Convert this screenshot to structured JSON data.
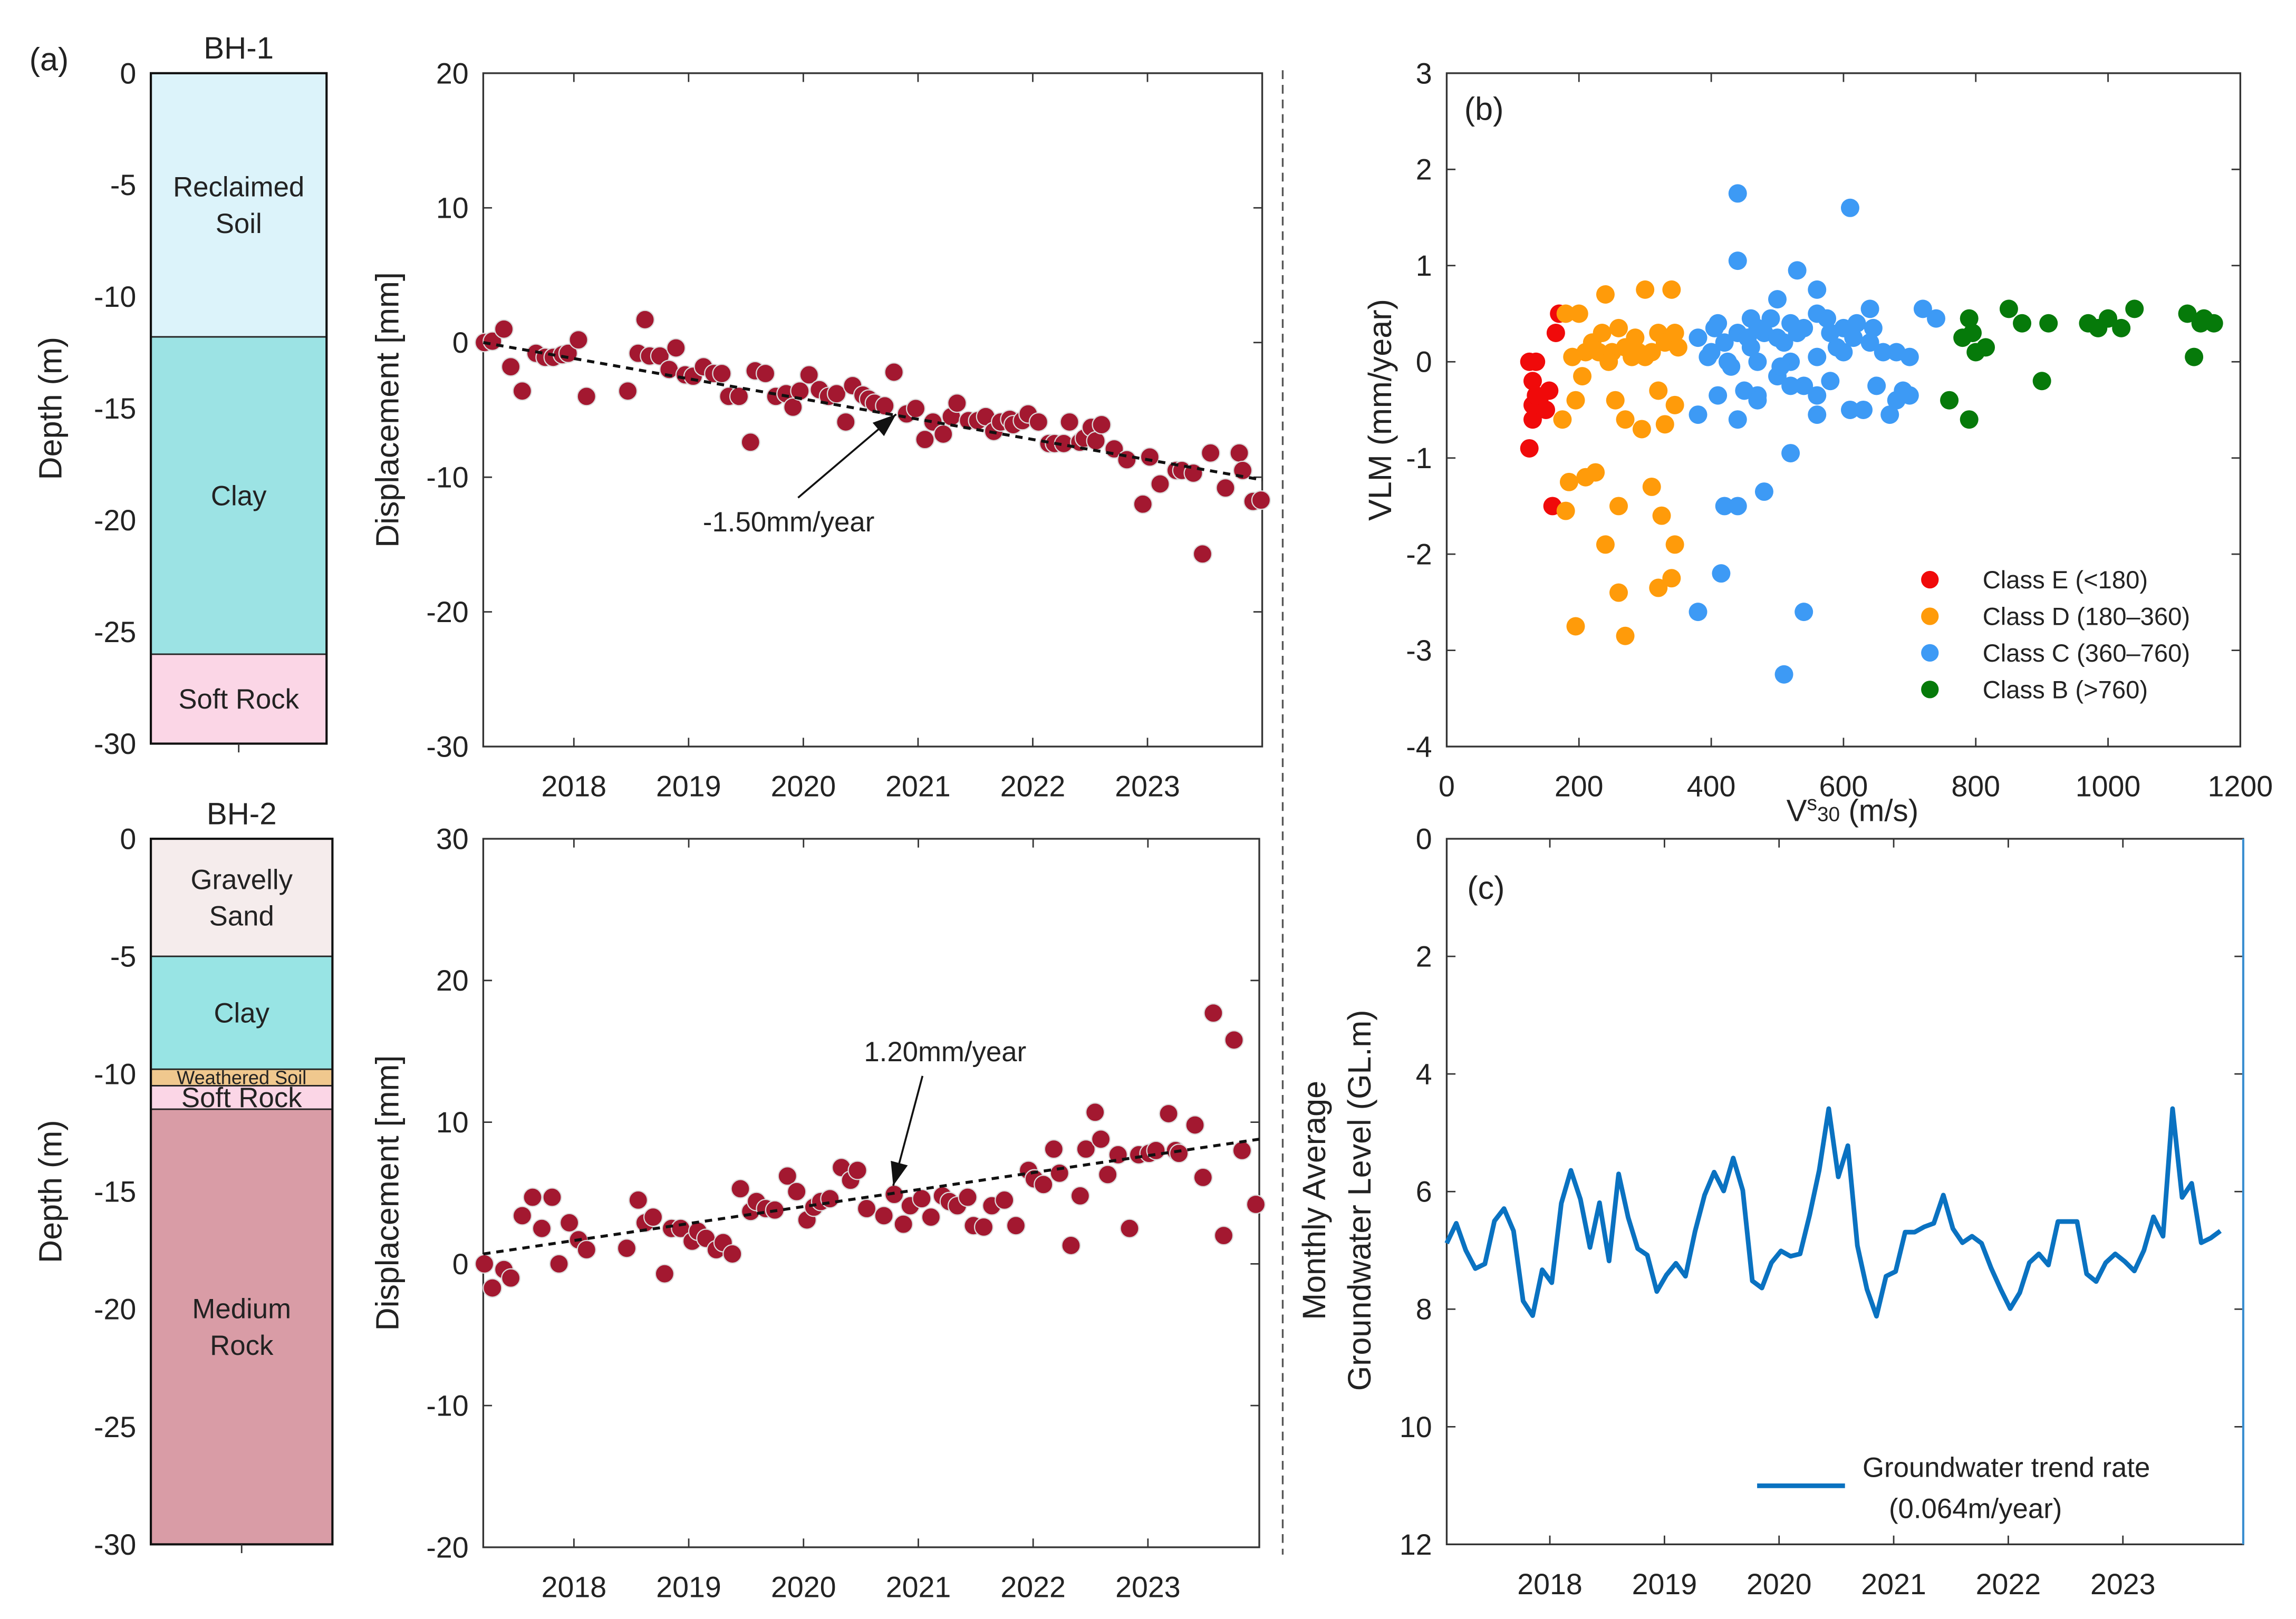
{
  "panel_labels": {
    "a": "(a)",
    "b": "(b)",
    "c": "(c)"
  },
  "chart_data": [
    {
      "id": "bh1",
      "type": "column",
      "title": "BH-1",
      "ylabel": "Depth (m)",
      "ylim": [
        -30,
        0
      ],
      "yticks": [
        0,
        -5,
        -10,
        -15,
        -20,
        -25,
        -30
      ],
      "layers": [
        {
          "label": [
            "Reclaimed",
            "Soil"
          ],
          "top": 0,
          "bottom": -11.8,
          "color": "#dcf3fa"
        },
        {
          "label": [
            "Clay"
          ],
          "top": -11.8,
          "bottom": -26,
          "color": "#9ce3e4"
        },
        {
          "label": [
            "Soft Rock"
          ],
          "top": -26,
          "bottom": -30,
          "color": "#fbd6e6"
        }
      ]
    },
    {
      "id": "bh2",
      "type": "column",
      "title": "BH-2",
      "ylabel": "Depth (m)",
      "ylim": [
        -30,
        0
      ],
      "yticks": [
        0,
        -5,
        -10,
        -15,
        -20,
        -25,
        -30
      ],
      "layers": [
        {
          "label": [
            "Gravelly",
            "Sand"
          ],
          "top": 0,
          "bottom": -5,
          "color": "#f5ecec"
        },
        {
          "label": [
            "Clay"
          ],
          "top": -5,
          "bottom": -9.8,
          "color": "#98e4e4"
        },
        {
          "label": [
            "Weathered Soil"
          ],
          "top": -9.8,
          "bottom": -10.5,
          "color": "#f0c88e"
        },
        {
          "label": [
            "Soft Rock"
          ],
          "top": -10.5,
          "bottom": -11.5,
          "color": "#fbd6e6"
        },
        {
          "label": [
            "Medium",
            "Rock"
          ],
          "top": -11.5,
          "bottom": -30,
          "color": "#d99ca6"
        }
      ]
    },
    {
      "id": "disp1",
      "type": "scatter",
      "ylabel": "Displacement [mm]",
      "xlim": [
        2017.21,
        2024.0
      ],
      "ylim": [
        -30,
        20
      ],
      "xticks": [
        2018,
        2019,
        2020,
        2021,
        2022,
        2023
      ],
      "yticks": [
        20,
        10,
        0,
        -10,
        -20,
        -30
      ],
      "color": "#a31830",
      "trend": {
        "x": [
          2017.21,
          2024.0
        ],
        "y": [
          0,
          -10.2
        ],
        "label": "-1.50mm/year"
      },
      "x": [
        2017.22,
        2017.29,
        2017.39,
        2017.45,
        2017.55,
        2017.67,
        2017.75,
        2017.82,
        2017.9,
        2017.95,
        2018.04,
        2018.11,
        2018.47,
        2018.56,
        2018.62,
        2018.66,
        2018.75,
        2018.83,
        2018.89,
        2018.97,
        2019.04,
        2019.13,
        2019.22,
        2019.29,
        2019.35,
        2019.44,
        2019.54,
        2019.58,
        2019.67,
        2019.76,
        2019.85,
        2019.91,
        2019.97,
        2020.05,
        2020.14,
        2020.22,
        2020.29,
        2020.37,
        2020.43,
        2020.52,
        2020.57,
        2020.62,
        2020.71,
        2020.79,
        2020.9,
        2020.98,
        2021.06,
        2021.13,
        2021.22,
        2021.29,
        2021.34,
        2021.44,
        2021.52,
        2021.59,
        2021.66,
        2021.72,
        2021.8,
        2021.83,
        2021.91,
        2021.96,
        2022.05,
        2022.14,
        2022.19,
        2022.27,
        2022.32,
        2022.41,
        2022.45,
        2022.51,
        2022.55,
        2022.6,
        2022.71,
        2022.82,
        2022.96,
        2023.02,
        2023.11,
        2023.25,
        2023.3,
        2023.4,
        2023.48,
        2023.55,
        2023.68,
        2023.8,
        2023.83,
        2023.92,
        2023.99
      ],
      "y": [
        0,
        0.1,
        1.0,
        -1.8,
        -3.6,
        -0.8,
        -1.1,
        -1.1,
        -0.9,
        -0.8,
        0.2,
        -4.0,
        -3.6,
        -0.8,
        1.7,
        -1.0,
        -1.0,
        -2.0,
        -0.4,
        -2.4,
        -2.5,
        -1.8,
        -2.3,
        -2.3,
        -4.0,
        -4.0,
        -7.4,
        -2.1,
        -2.3,
        -4.0,
        -3.8,
        -4.8,
        -3.6,
        -2.4,
        -3.5,
        -4.0,
        -3.8,
        -5.9,
        -3.2,
        -3.9,
        -4.2,
        -4.5,
        -4.7,
        -2.2,
        -5.3,
        -4.9,
        -7.2,
        -5.9,
        -6.8,
        -5.5,
        -4.5,
        -5.8,
        -5.8,
        -5.5,
        -6.6,
        -5.9,
        -5.7,
        -6.1,
        -5.8,
        -5.3,
        -5.9,
        -7.5,
        -7.5,
        -7.5,
        -5.9,
        -7.4,
        -7.1,
        -6.3,
        -7.3,
        -6.1,
        -7.9,
        -8.7,
        -12.0,
        -8.5,
        -10.5,
        -9.5,
        -9.5,
        -9.7,
        -15.7,
        -8.2,
        -10.8,
        -8.2,
        -9.5,
        -11.8,
        -11.7
      ]
    },
    {
      "id": "disp2",
      "type": "scatter",
      "ylabel": "Displacement [mm]",
      "xlim": [
        2017.21,
        2023.97
      ],
      "ylim": [
        -20,
        30
      ],
      "xticks": [
        2018,
        2019,
        2020,
        2021,
        2022,
        2023
      ],
      "yticks": [
        30,
        20,
        10,
        0,
        -10,
        -20
      ],
      "color": "#a31830",
      "trend": {
        "x": [
          2017.21,
          2023.97
        ],
        "y": [
          0.7,
          8.8
        ],
        "label": "1.20mm/year"
      },
      "x": [
        2017.22,
        2017.29,
        2017.39,
        2017.45,
        2017.55,
        2017.64,
        2017.72,
        2017.81,
        2017.87,
        2017.96,
        2018.04,
        2018.11,
        2018.46,
        2018.56,
        2018.62,
        2018.69,
        2018.79,
        2018.85,
        2018.93,
        2019.03,
        2019.08,
        2019.15,
        2019.24,
        2019.3,
        2019.38,
        2019.45,
        2019.54,
        2019.59,
        2019.67,
        2019.75,
        2019.86,
        2019.94,
        2020.03,
        2020.09,
        2020.15,
        2020.23,
        2020.33,
        2020.41,
        2020.47,
        2020.55,
        2020.7,
        2020.79,
        2020.87,
        2020.93,
        2021.03,
        2021.11,
        2021.21,
        2021.27,
        2021.34,
        2021.43,
        2021.48,
        2021.57,
        2021.64,
        2021.75,
        2021.85,
        2021.96,
        2022.01,
        2022.09,
        2022.18,
        2022.23,
        2022.33,
        2022.41,
        2022.46,
        2022.54,
        2022.59,
        2022.65,
        2022.74,
        2022.84,
        2022.92,
        2023.01,
        2023.07,
        2023.18,
        2023.24,
        2023.27,
        2023.41,
        2023.48,
        2023.57,
        2023.66,
        2023.75,
        2023.82,
        2023.94
      ],
      "y": [
        0,
        -1.7,
        -0.4,
        -1.0,
        3.4,
        4.7,
        2.5,
        4.7,
        0,
        2.9,
        1.7,
        1.0,
        1.1,
        4.5,
        2.9,
        3.3,
        -0.7,
        2.5,
        2.5,
        1.6,
        2.3,
        1.8,
        1.0,
        1.5,
        0.7,
        5.3,
        3.7,
        4.4,
        3.9,
        3.8,
        6.2,
        5.1,
        3.1,
        4.0,
        4.4,
        4.6,
        6.8,
        5.9,
        6.6,
        3.9,
        3.4,
        4.9,
        2.8,
        4.1,
        4.6,
        3.3,
        4.8,
        4.4,
        4.1,
        4.7,
        2.7,
        2.6,
        4.1,
        4.5,
        2.7,
        6.6,
        6.0,
        5.6,
        8.1,
        6.4,
        1.3,
        4.8,
        8.1,
        10.7,
        8.8,
        6.3,
        7.7,
        2.5,
        7.7,
        7.8,
        8.0,
        10.6,
        8.0,
        7.8,
        9.8,
        6.1,
        17.7,
        2.0,
        15.8,
        8.0,
        4.2
      ]
    },
    {
      "id": "vlm",
      "type": "scatter",
      "xlabel_main": "V",
      "xlabel_sup": "s",
      "xlabel_sub": "30",
      "xlabel_unit": "(m/s)",
      "ylabel": "VLM (mm/year)",
      "xlim": [
        0,
        1200
      ],
      "ylim": [
        -4,
        3
      ],
      "xticks": [
        0,
        200,
        400,
        600,
        800,
        1000,
        1200
      ],
      "yticks": [
        3,
        2,
        1,
        0,
        -1,
        -2,
        -3,
        -4
      ],
      "legend_position": "bottom-right",
      "series": [
        {
          "name": "Class E (<180)",
          "color": "#f00a0a",
          "x": [
            125,
            130,
            130,
            125,
            135,
            130,
            140,
            155,
            165,
            170,
            160,
            135,
            150
          ],
          "y": [
            -0.9,
            -0.6,
            -0.45,
            0,
            0,
            -0.2,
            -0.4,
            -0.3,
            0.3,
            0.5,
            -1.5,
            -0.35,
            -0.5
          ]
        },
        {
          "name": "Class D (180–360)",
          "color": "#ff9b0a",
          "x": [
            180,
            200,
            240,
            300,
            340,
            260,
            320,
            345,
            190,
            210,
            230,
            250,
            270,
            290,
            310,
            330,
            350,
            220,
            245,
            280,
            300,
            195,
            255,
            320,
            175,
            270,
            295,
            345,
            330,
            185,
            210,
            225,
            310,
            180,
            260,
            325,
            240,
            345,
            340,
            320,
            260,
            195,
            270,
            205,
            235,
            285
          ],
          "y": [
            0.5,
            0.5,
            0.7,
            0.75,
            0.75,
            0.35,
            0.3,
            0.3,
            0.05,
            0.1,
            0.1,
            0.1,
            0.15,
            0.1,
            0.1,
            0.2,
            0.15,
            0.2,
            0.0,
            0.05,
            0.05,
            -0.4,
            -0.4,
            -0.3,
            -0.6,
            -0.6,
            -0.7,
            -0.45,
            -0.65,
            -1.25,
            -1.2,
            -1.15,
            -1.3,
            -1.55,
            -1.5,
            -1.6,
            -1.9,
            -1.9,
            -2.25,
            -2.35,
            -2.4,
            -2.75,
            -2.85,
            -0.15,
            0.3,
            0.25
          ]
        },
        {
          "name": "Class C (360–760)",
          "color": "#3d9af5",
          "x": [
            440,
            610,
            440,
            530,
            560,
            500,
            460,
            640,
            410,
            380,
            400,
            420,
            440,
            460,
            480,
            500,
            520,
            540,
            560,
            580,
            600,
            620,
            640,
            660,
            680,
            700,
            720,
            740,
            600,
            560,
            520,
            470,
            430,
            395,
            380,
            410,
            450,
            470,
            500,
            520,
            540,
            560,
            580,
            610,
            650,
            680,
            700,
            440,
            470,
            560,
            630,
            670,
            690,
            520,
            420,
            440,
            480,
            415,
            380,
            540,
            510,
            405,
            455,
            490,
            510,
            530,
            575,
            615,
            645,
            590,
            470,
            425,
            505
          ],
          "y": [
            1.75,
            1.6,
            1.05,
            0.95,
            0.75,
            0.65,
            0.45,
            0.55,
            0.4,
            0.25,
            0.1,
            0.2,
            0.3,
            0.15,
            0.3,
            0.25,
            0.4,
            0.35,
            0.5,
            0.3,
            0.35,
            0.4,
            0.2,
            0.1,
            0.1,
            0.05,
            0.55,
            0.45,
            0.1,
            0.05,
            0.0,
            0.0,
            -0.05,
            0.05,
            -0.55,
            -0.35,
            -0.3,
            -0.35,
            -0.15,
            -0.25,
            -0.25,
            -0.35,
            -0.2,
            -0.5,
            -0.25,
            -0.4,
            -0.35,
            -0.6,
            -0.4,
            -0.55,
            -0.5,
            -0.55,
            -0.3,
            -0.95,
            -1.5,
            -1.5,
            -1.35,
            -2.2,
            -2.6,
            -2.6,
            -3.25,
            0.35,
            0.25,
            0.45,
            0.2,
            0.3,
            0.45,
            0.25,
            0.35,
            0.15,
            0.35,
            0.0,
            -0.05
          ]
        },
        {
          "name": "Class B (>760)",
          "color": "#067a0a",
          "x": [
            790,
            795,
            780,
            800,
            815,
            850,
            870,
            910,
            970,
            985,
            1000,
            1020,
            1040,
            1120,
            1140,
            1160,
            1130,
            760,
            790,
            900,
            1145
          ],
          "y": [
            0.45,
            0.3,
            0.25,
            0.1,
            0.15,
            0.55,
            0.4,
            0.4,
            0.4,
            0.35,
            0.45,
            0.35,
            0.55,
            0.5,
            0.4,
            0.4,
            0.05,
            -0.4,
            -0.6,
            -0.2,
            0.45
          ]
        }
      ]
    },
    {
      "id": "gw",
      "type": "line",
      "ylabel": [
        "Monthly Average",
        "Groundwater Level (GL.m)"
      ],
      "xlim": [
        2017.1,
        2024.05
      ],
      "ylim": [
        0,
        12
      ],
      "y_reversed": true,
      "xticks": [
        2018,
        2019,
        2020,
        2021,
        2022,
        2023
      ],
      "yticks": [
        0,
        2,
        4,
        6,
        8,
        10,
        12
      ],
      "color": "#0a72c1",
      "legend": {
        "label": "Groundwater trend rate",
        "rate": "(0.064m/year)",
        "position": "bottom-right"
      },
      "x_start": 2017.1,
      "x_step_months": 1,
      "values": [
        6.88,
        6.54,
        7.0,
        7.31,
        7.23,
        6.5,
        6.29,
        6.67,
        7.86,
        8.11,
        7.33,
        7.55,
        6.2,
        5.64,
        6.13,
        6.95,
        6.19,
        7.18,
        5.7,
        6.44,
        6.97,
        7.08,
        7.7,
        7.42,
        7.22,
        7.44,
        6.68,
        6.06,
        5.67,
        5.99,
        5.43,
        5.98,
        7.52,
        7.64,
        7.21,
        7.01,
        7.1,
        7.06,
        6.4,
        5.64,
        4.59,
        5.75,
        5.22,
        6.92,
        7.66,
        8.12,
        7.44,
        7.36,
        6.69,
        6.69,
        6.6,
        6.54,
        6.06,
        6.63,
        6.87,
        6.76,
        6.88,
        7.3,
        7.66,
        7.99,
        7.72,
        7.21,
        7.06,
        7.25,
        6.51,
        6.51,
        6.51,
        7.4,
        7.53,
        7.21,
        7.06,
        7.19,
        7.35,
        7.0,
        6.43,
        6.76,
        4.59,
        6.1,
        5.86,
        6.87,
        6.79,
        6.67
      ]
    }
  ]
}
